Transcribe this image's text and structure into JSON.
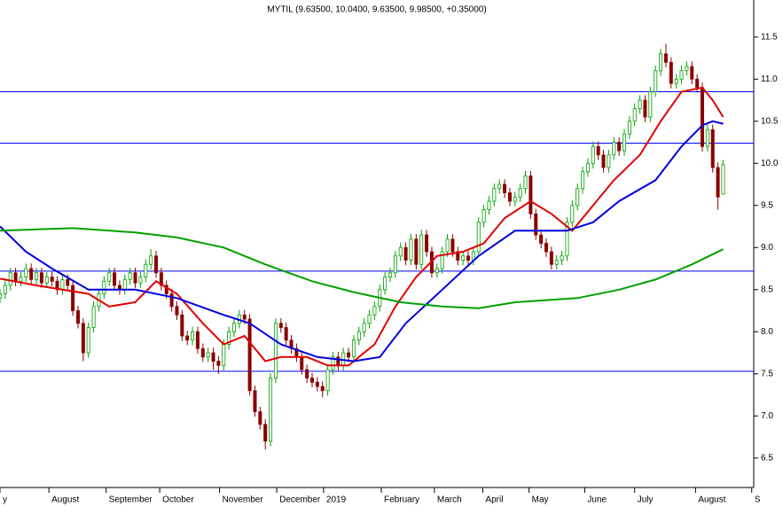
{
  "chart_data": {
    "type": "candlestick",
    "title": "MYTIL (9.63500, 10.0400, 9.63500, 9.98500, +0.35000)",
    "xlim": [
      0,
      150
    ],
    "ylim": [
      6.15,
      11.94
    ],
    "yticks": [
      6.5,
      {
        "value": 7,
        "label": "7.0"
      },
      7.5,
      {
        "value": 8,
        "label": "8.0"
      },
      8.5,
      {
        "value": 9,
        "label": "9.0"
      },
      9.5,
      {
        "value": 10,
        "label": "10.0"
      },
      10.5,
      {
        "value": 11,
        "label": "11.0"
      },
      11.5
    ],
    "xticks": [
      {
        "value": 0,
        "label": "y"
      },
      {
        "value": 9.4,
        "label": "August"
      },
      {
        "value": 20.4,
        "label": "September"
      },
      {
        "value": 30.7,
        "label": "October"
      },
      {
        "value": 42.2,
        "label": "November"
      },
      {
        "value": 53.2,
        "label": "December"
      },
      {
        "value": 62.2,
        "label": "2019"
      },
      {
        "value": 73.3,
        "label": "February"
      },
      {
        "value": 83.5,
        "label": "March"
      },
      {
        "value": 92.8,
        "label": "April"
      },
      {
        "value": 101.7,
        "label": "May"
      },
      {
        "value": 112.4,
        "label": "June"
      },
      {
        "value": 122,
        "label": "July"
      },
      {
        "value": 133.7,
        "label": "August"
      },
      {
        "value": 144.5,
        "label": "S"
      }
    ],
    "up_color": "#00a000",
    "down_color": "#8b0000",
    "candles": [
      [
        8.4,
        8.51,
        8.34,
        8.45
      ],
      [
        8.45,
        8.61,
        8.39,
        8.55
      ],
      [
        8.55,
        8.76,
        8.49,
        8.7
      ],
      [
        8.7,
        8.76,
        8.54,
        8.6
      ],
      [
        8.6,
        8.71,
        8.54,
        8.65
      ],
      [
        8.65,
        8.81,
        8.59,
        8.75
      ],
      [
        8.75,
        8.81,
        8.56,
        8.62
      ],
      [
        8.62,
        8.76,
        8.56,
        8.7
      ],
      [
        8.7,
        8.76,
        8.52,
        8.58
      ],
      [
        8.58,
        8.71,
        8.52,
        8.65
      ],
      [
        8.65,
        8.71,
        8.54,
        8.6
      ],
      [
        8.6,
        8.66,
        8.44,
        8.5
      ],
      [
        8.5,
        8.68,
        8.44,
        8.62
      ],
      [
        8.62,
        8.68,
        8.49,
        8.55
      ],
      [
        8.55,
        8.61,
        8.19,
        8.25
      ],
      [
        8.25,
        8.31,
        8.04,
        8.1
      ],
      [
        8.1,
        8.16,
        7.65,
        7.75
      ],
      [
        7.75,
        8.11,
        7.69,
        8.05
      ],
      [
        8.05,
        8.36,
        7.99,
        8.3
      ],
      [
        8.3,
        8.51,
        8.24,
        8.45
      ],
      [
        8.45,
        8.66,
        8.39,
        8.6
      ],
      [
        8.6,
        8.76,
        8.54,
        8.7
      ],
      [
        8.7,
        8.76,
        8.49,
        8.55
      ],
      [
        8.55,
        8.61,
        8.44,
        8.5
      ],
      [
        8.5,
        8.68,
        8.44,
        8.62
      ],
      [
        8.62,
        8.76,
        8.56,
        8.7
      ],
      [
        8.7,
        8.76,
        8.52,
        8.58
      ],
      [
        8.58,
        8.71,
        8.52,
        8.65
      ],
      [
        8.65,
        8.86,
        8.59,
        8.8
      ],
      [
        8.8,
        8.98,
        8.74,
        8.9
      ],
      [
        8.9,
        8.96,
        8.64,
        8.7
      ],
      [
        8.7,
        8.76,
        8.49,
        8.55
      ],
      [
        8.55,
        8.61,
        8.39,
        8.45
      ],
      [
        8.45,
        8.51,
        8.24,
        8.3
      ],
      [
        8.3,
        8.36,
        8.14,
        8.2
      ],
      [
        8.2,
        8.26,
        7.89,
        7.95
      ],
      [
        7.95,
        8.01,
        7.84,
        7.9
      ],
      [
        7.9,
        8.06,
        7.84,
        8.0
      ],
      [
        8.0,
        8.06,
        7.74,
        7.8
      ],
      [
        7.8,
        7.86,
        7.64,
        7.7
      ],
      [
        7.7,
        7.81,
        7.64,
        7.75
      ],
      [
        7.75,
        7.81,
        7.55,
        7.65
      ],
      [
        7.65,
        7.71,
        7.5,
        7.6
      ],
      [
        7.6,
        7.91,
        7.54,
        7.85
      ],
      [
        7.85,
        8.06,
        7.79,
        8.0
      ],
      [
        8.0,
        8.16,
        7.94,
        8.1
      ],
      [
        8.1,
        8.26,
        8.04,
        8.2
      ],
      [
        8.2,
        8.26,
        8.09,
        8.15
      ],
      [
        8.15,
        8.21,
        7.24,
        7.3
      ],
      [
        7.3,
        7.36,
        6.99,
        7.05
      ],
      [
        7.05,
        7.11,
        6.84,
        6.9
      ],
      [
        6.9,
        6.96,
        6.6,
        6.7
      ],
      [
        6.7,
        7.51,
        6.64,
        7.45
      ],
      [
        7.45,
        8.16,
        7.39,
        8.1
      ],
      [
        8.1,
        8.16,
        7.99,
        8.05
      ],
      [
        8.05,
        8.11,
        7.84,
        7.9
      ],
      [
        7.9,
        7.96,
        7.74,
        7.8
      ],
      [
        7.8,
        7.86,
        7.64,
        7.7
      ],
      [
        7.7,
        7.76,
        7.49,
        7.55
      ],
      [
        7.55,
        7.61,
        7.39,
        7.45
      ],
      [
        7.45,
        7.51,
        7.34,
        7.4
      ],
      [
        7.4,
        7.46,
        7.29,
        7.35
      ],
      [
        7.35,
        7.41,
        7.22,
        7.3
      ],
      [
        7.3,
        7.61,
        7.24,
        7.55
      ],
      [
        7.55,
        7.76,
        7.49,
        7.7
      ],
      [
        7.7,
        7.76,
        7.54,
        7.6
      ],
      [
        7.6,
        7.81,
        7.54,
        7.75
      ],
      [
        7.75,
        7.81,
        7.64,
        7.7
      ],
      [
        7.7,
        7.96,
        7.64,
        7.9
      ],
      [
        7.9,
        8.06,
        7.84,
        8.0
      ],
      [
        8.0,
        8.16,
        7.94,
        8.1
      ],
      [
        8.1,
        8.26,
        8.04,
        8.2
      ],
      [
        8.2,
        8.36,
        8.14,
        8.3
      ],
      [
        8.3,
        8.56,
        8.24,
        8.5
      ],
      [
        8.5,
        8.71,
        8.44,
        8.65
      ],
      [
        8.65,
        8.76,
        8.59,
        8.7
      ],
      [
        8.7,
        8.96,
        8.64,
        8.9
      ],
      [
        8.9,
        9.06,
        8.84,
        9.0
      ],
      [
        9.0,
        9.06,
        8.79,
        8.85
      ],
      [
        8.85,
        9.16,
        8.79,
        9.1
      ],
      [
        9.1,
        9.16,
        8.74,
        8.8
      ],
      [
        8.8,
        9.21,
        8.74,
        9.15
      ],
      [
        9.15,
        9.21,
        8.89,
        8.95
      ],
      [
        8.95,
        9.01,
        8.64,
        8.7
      ],
      [
        8.7,
        8.81,
        8.64,
        8.75
      ],
      [
        8.75,
        9.01,
        8.69,
        8.95
      ],
      [
        8.95,
        9.16,
        8.89,
        9.1
      ],
      [
        9.1,
        9.16,
        8.89,
        8.95
      ],
      [
        8.95,
        9.01,
        8.79,
        8.85
      ],
      [
        8.85,
        8.96,
        8.79,
        8.9
      ],
      [
        8.9,
        8.96,
        8.79,
        8.85
      ],
      [
        8.85,
        9.01,
        8.79,
        8.95
      ],
      [
        8.95,
        9.36,
        8.89,
        9.3
      ],
      [
        9.3,
        9.51,
        9.24,
        9.45
      ],
      [
        9.45,
        9.61,
        9.39,
        9.55
      ],
      [
        9.55,
        9.76,
        9.49,
        9.7
      ],
      [
        9.7,
        9.81,
        9.64,
        9.75
      ],
      [
        9.75,
        9.81,
        9.59,
        9.65
      ],
      [
        9.65,
        9.71,
        9.49,
        9.55
      ],
      [
        9.55,
        9.66,
        9.49,
        9.6
      ],
      [
        9.6,
        9.76,
        9.54,
        9.7
      ],
      [
        9.7,
        9.91,
        9.64,
        9.85
      ],
      [
        9.85,
        9.91,
        9.34,
        9.4
      ],
      [
        9.4,
        9.46,
        9.09,
        9.15
      ],
      [
        9.15,
        9.21,
        8.99,
        9.05
      ],
      [
        9.05,
        9.11,
        8.89,
        8.95
      ],
      [
        8.95,
        9.01,
        8.74,
        8.8
      ],
      [
        8.8,
        8.91,
        8.74,
        8.85
      ],
      [
        8.85,
        8.96,
        8.79,
        8.9
      ],
      [
        8.9,
        9.36,
        8.84,
        9.3
      ],
      [
        9.3,
        9.56,
        9.24,
        9.5
      ],
      [
        9.5,
        9.76,
        9.44,
        9.7
      ],
      [
        9.7,
        9.96,
        9.64,
        9.9
      ],
      [
        9.9,
        10.06,
        9.84,
        10.0
      ],
      [
        10.0,
        10.26,
        9.94,
        10.2
      ],
      [
        10.2,
        10.26,
        10.04,
        10.1
      ],
      [
        10.1,
        10.16,
        9.89,
        9.95
      ],
      [
        9.95,
        10.16,
        9.89,
        10.1
      ],
      [
        10.1,
        10.31,
        10.04,
        10.25
      ],
      [
        10.25,
        10.31,
        10.09,
        10.15
      ],
      [
        10.15,
        10.41,
        10.09,
        10.35
      ],
      [
        10.35,
        10.56,
        10.29,
        10.5
      ],
      [
        10.5,
        10.71,
        10.44,
        10.65
      ],
      [
        10.65,
        10.81,
        10.59,
        10.75
      ],
      [
        10.75,
        10.81,
        10.49,
        10.55
      ],
      [
        10.55,
        10.91,
        10.49,
        10.85
      ],
      [
        10.85,
        11.16,
        10.79,
        11.1
      ],
      [
        11.1,
        11.36,
        11.04,
        11.3
      ],
      [
        11.3,
        11.42,
        11.14,
        11.2
      ],
      [
        11.2,
        11.26,
        10.89,
        10.95
      ],
      [
        10.95,
        11.06,
        10.89,
        11.0
      ],
      [
        11.0,
        11.16,
        10.94,
        11.1
      ],
      [
        11.1,
        11.21,
        11.04,
        11.15
      ],
      [
        11.15,
        11.21,
        10.94,
        11.0
      ],
      [
        11.0,
        11.06,
        10.84,
        10.9
      ],
      [
        10.9,
        10.96,
        10.14,
        10.2
      ],
      [
        10.2,
        10.46,
        10.14,
        10.4
      ],
      [
        10.4,
        10.46,
        9.89,
        9.95
      ],
      [
        9.95,
        10.01,
        9.45,
        9.6
      ],
      [
        9.635,
        10.04,
        9.635,
        9.985
      ]
    ],
    "hlines": [
      10.85,
      10.24,
      8.72,
      7.53
    ],
    "hline_color": "#0000ff",
    "lines": [
      {
        "color": "#e00000",
        "x": [
          0,
          7,
          17,
          21,
          26,
          30,
          34,
          39,
          43,
          47,
          51,
          54,
          59,
          63,
          67,
          72,
          76,
          80,
          84,
          89,
          93,
          97,
          102,
          106,
          110,
          114,
          118,
          123,
          127,
          131,
          135,
          137,
          139
        ],
        "values": [
          8.63,
          8.55,
          8.45,
          8.3,
          8.35,
          8.6,
          8.45,
          8.1,
          7.85,
          7.95,
          7.65,
          7.7,
          7.7,
          7.6,
          7.6,
          7.85,
          8.3,
          8.65,
          8.9,
          8.95,
          9.05,
          9.35,
          9.55,
          9.4,
          9.2,
          9.5,
          9.8,
          10.1,
          10.5,
          10.85,
          10.9,
          10.75,
          10.55
        ]
      },
      {
        "color": "#0000e0",
        "x": [
          0,
          5,
          10,
          17,
          26,
          34,
          43,
          48,
          54,
          61,
          68,
          73,
          78,
          85,
          92,
          99,
          104,
          109,
          114,
          119,
          126,
          131,
          135,
          137,
          139
        ],
        "values": [
          9.25,
          8.95,
          8.75,
          8.5,
          8.5,
          8.4,
          8.2,
          8.1,
          7.85,
          7.7,
          7.65,
          7.7,
          8.1,
          8.5,
          8.9,
          9.2,
          9.2,
          9.2,
          9.3,
          9.55,
          9.8,
          10.2,
          10.45,
          10.5,
          10.47
        ]
      },
      {
        "color": "#00a000",
        "x": [
          0,
          14,
          26,
          34,
          43,
          51,
          60,
          68,
          77,
          85,
          92,
          99,
          106,
          111,
          119,
          126,
          133,
          139
        ],
        "values": [
          9.2,
          9.23,
          9.18,
          9.12,
          9.0,
          8.8,
          8.6,
          8.47,
          8.35,
          8.3,
          8.28,
          8.35,
          8.38,
          8.4,
          8.5,
          8.62,
          8.8,
          8.98
        ]
      }
    ]
  }
}
